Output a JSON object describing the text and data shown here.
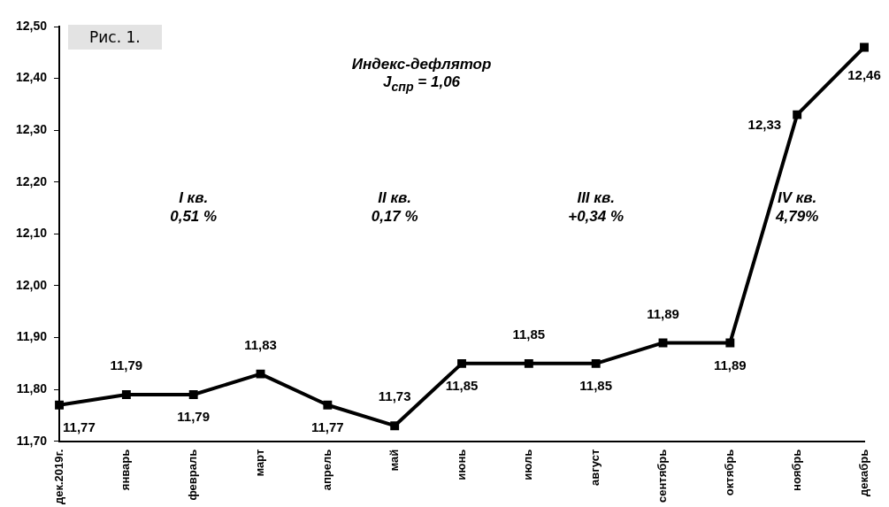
{
  "chart_data": {
    "type": "line",
    "categories": [
      "дек.2019г.",
      "январь",
      "февраль",
      "март",
      "апрель",
      "май",
      "июнь",
      "июль",
      "август",
      "сентябрь",
      "октябрь",
      "ноябрь",
      "декабрь"
    ],
    "series": [
      {
        "color": "#000000",
        "values": [
          11.77,
          11.79,
          11.79,
          11.83,
          11.77,
          11.73,
          11.85,
          11.85,
          11.85,
          11.89,
          11.89,
          12.33,
          12.46
        ],
        "value_labels": [
          "11,77",
          "11,79",
          "11,79",
          "11,83",
          "11,77",
          "11,73",
          "11,85",
          "11,85",
          "11,85",
          "11,89",
          "11,89",
          "12,33",
          "12,46"
        ]
      }
    ],
    "ylim": [
      11.7,
      12.5
    ],
    "yticks": [
      {
        "value": 11.7,
        "label": "11,70"
      },
      {
        "value": 11.8,
        "label": "11,80"
      },
      {
        "value": 11.9,
        "label": "11,90"
      },
      {
        "value": 12.0,
        "label": "12,00"
      },
      {
        "value": 12.1,
        "label": "12,10"
      },
      {
        "value": 12.2,
        "label": "12,20"
      },
      {
        "value": 12.3,
        "label": "12,30"
      },
      {
        "value": 12.4,
        "label": "12,40"
      },
      {
        "value": 12.5,
        "label": "12,50"
      }
    ],
    "grid": false,
    "legend": false,
    "marker": "square",
    "line_style": "solid",
    "annotations": [
      "Рис. 1.",
      "Индекс-дефлятор\nJ$_{спр}$ = 1,06",
      "I кв.\n0,51 %",
      "II кв.\n0,17 %",
      "III кв.\n+0,34 %",
      "IV кв.\n4,79%"
    ]
  }
}
